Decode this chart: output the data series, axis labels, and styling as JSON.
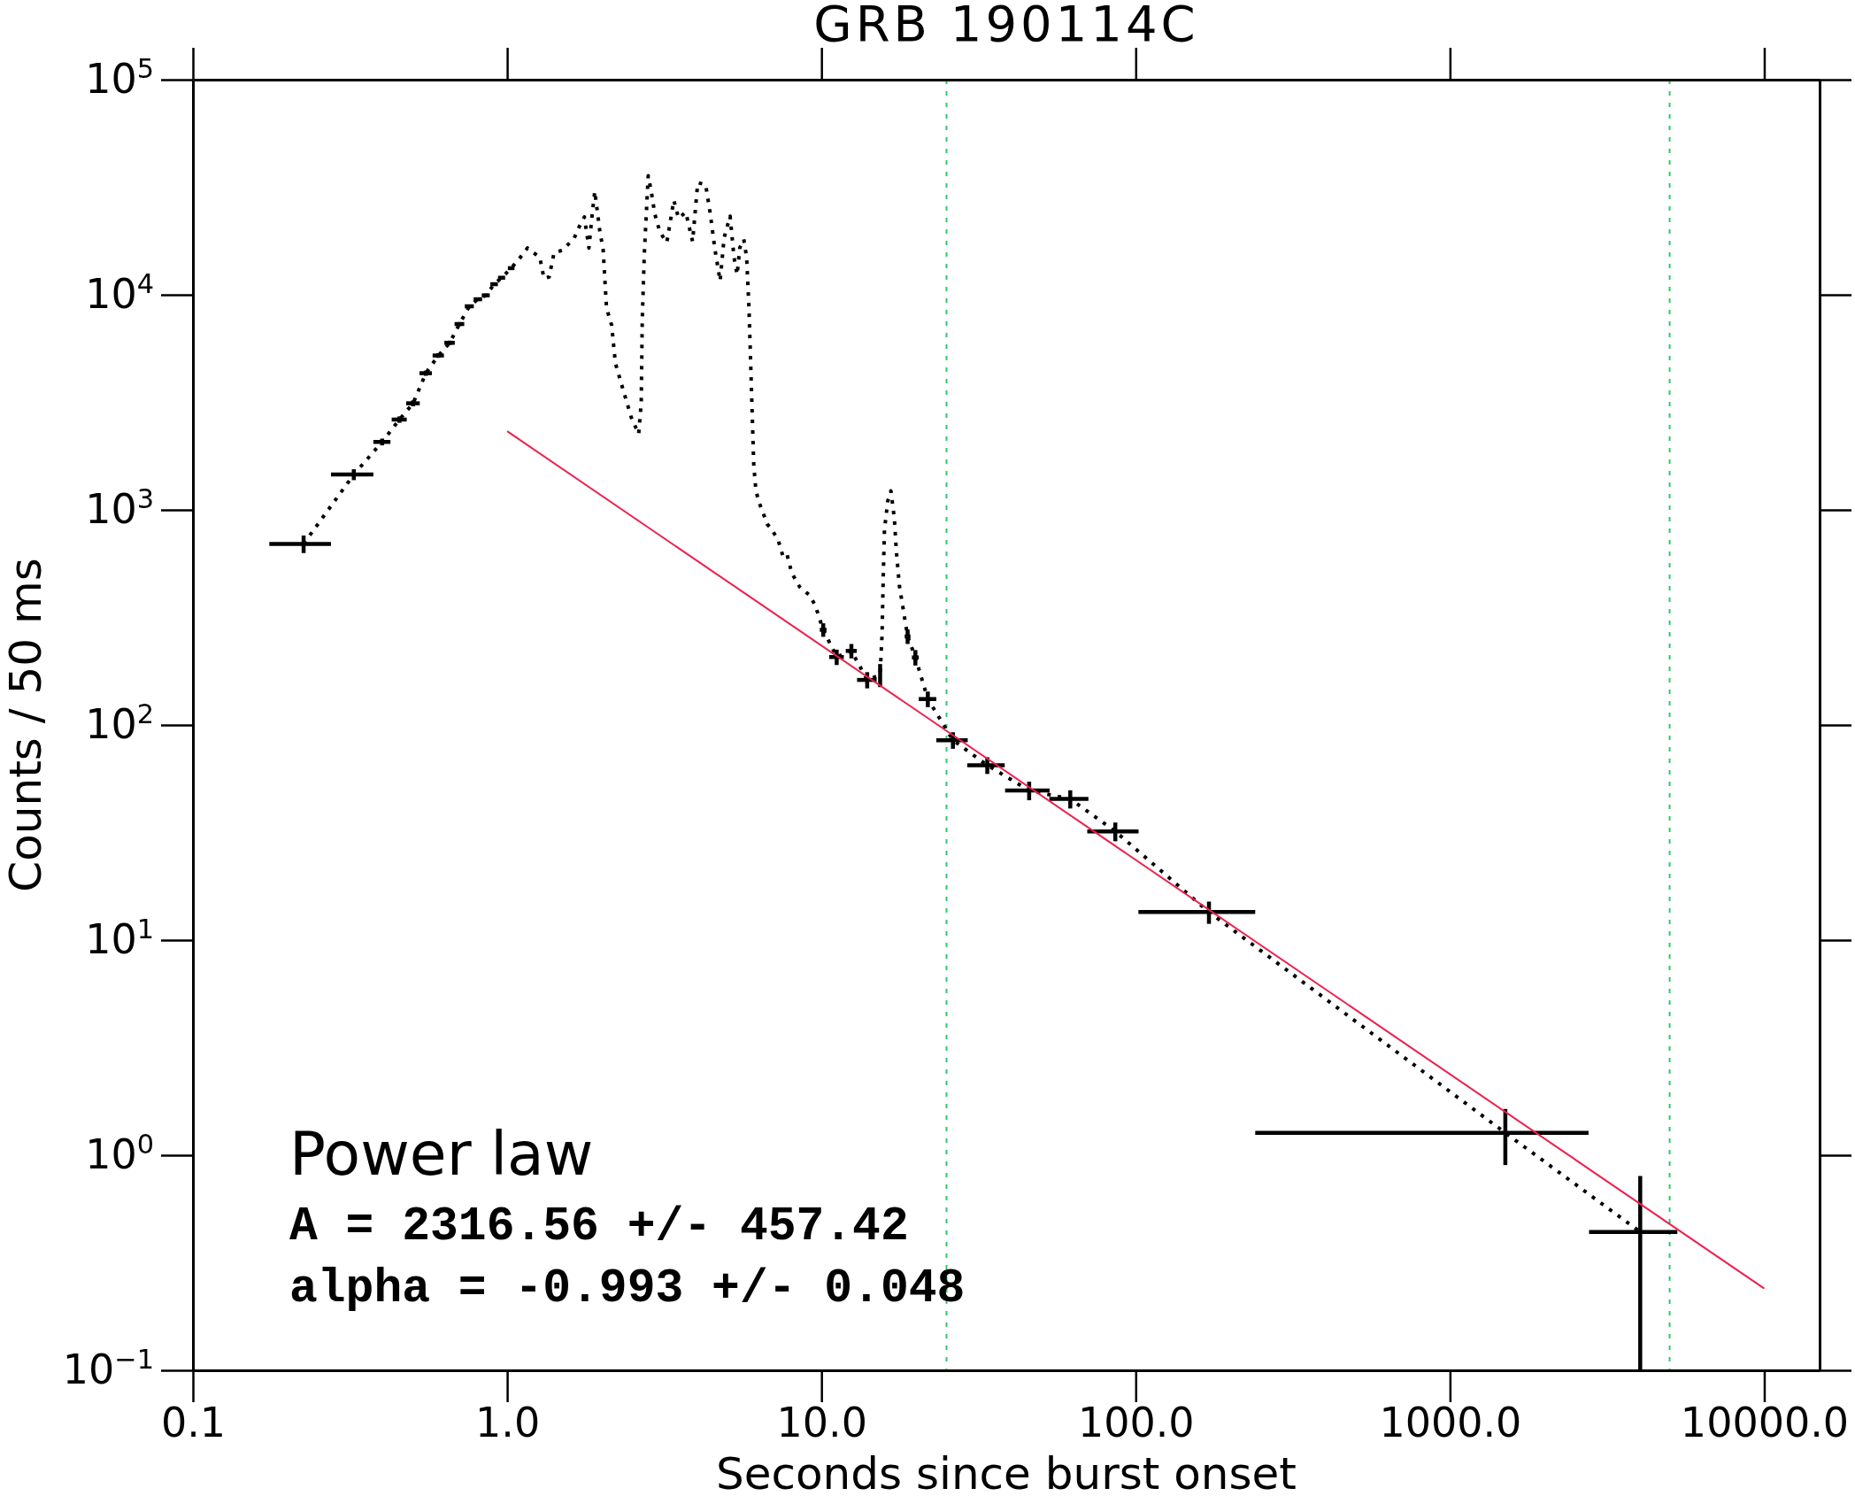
{
  "chart_data": {
    "type": "line",
    "title": "GRB 190114C",
    "xlabel": "Seconds since burst onset",
    "ylabel": "Counts / 50 ms",
    "log": "xy",
    "xlim": [
      0.1,
      15000
    ],
    "ylim": [
      0.1,
      100000
    ],
    "xticks": [
      0.1,
      {
        "value": 1,
        "label": "1.0"
      },
      {
        "value": 10,
        "label": "10.0"
      },
      {
        "value": 100,
        "label": "100.0"
      },
      {
        "value": 1000,
        "label": "1000.0"
      },
      {
        "value": 10000,
        "label": "10000.0"
      }
    ],
    "yticks": [
      {
        "value": 0.1,
        "label": "10$^{−1}$"
      },
      {
        "value": 1,
        "label": "10$^{0}$"
      },
      {
        "value": 10,
        "label": "10$^{1}$"
      },
      {
        "value": 100,
        "label": "10$^{2}$"
      },
      {
        "value": 1000,
        "label": "10$^{3}$"
      },
      {
        "value": 10000,
        "label": "10$^{4}$"
      },
      {
        "value": 100000,
        "label": "10$^{5}$"
      }
    ],
    "series": [
      {
        "color": "#000000",
        "line_style": "dotted",
        "x": [
          0.225,
          0.325,
          0.4,
          0.454,
          0.502,
          0.551,
          0.604,
          0.656,
          0.705,
          0.758,
          0.807,
          0.855,
          0.909,
          0.96,
          1.03,
          1.1,
          1.16,
          1.22,
          1.27,
          1.31,
          1.36,
          1.41,
          1.5,
          1.56,
          1.63,
          1.7,
          1.76,
          1.82,
          1.86,
          1.9,
          1.97,
          2.02,
          2.07,
          2.15,
          2.21,
          2.34,
          2.48,
          2.62,
          2.67,
          2.69,
          2.73,
          2.81,
          2.87,
          2.95,
          3.06,
          3.22,
          3.39,
          3.51,
          3.7,
          3.89,
          4.04,
          4.28,
          4.43,
          4.58,
          4.76,
          4.9,
          5.12,
          5.27,
          5.39,
          5.5,
          5.66,
          5.78,
          5.88,
          6.0,
          6.09,
          6.18,
          6.3,
          6.52,
          6.71,
          6.91,
          7.28,
          7.54,
          7.76,
          8.04,
          8.51,
          9.18,
          9.55,
          10.13,
          11.18,
          12.45,
          13.98,
          15.37,
          15.59,
          15.73,
          15.87,
          16.03,
          16.23,
          16.63,
          17.06,
          17.3,
          17.7,
          18.1,
          18.8,
          19.9,
          21.8,
          26.2,
          33.7,
          45.8,
          61.9,
          86.1,
          171,
          1500,
          4030
        ],
        "values": [
          695,
          1460,
          2070,
          2630,
          3130,
          4320,
          5220,
          5980,
          7310,
          8840,
          9530,
          9940,
          11200,
          12000,
          13300,
          14900,
          16500,
          15600,
          14900,
          11900,
          12100,
          15700,
          16100,
          17100,
          18200,
          20900,
          23000,
          16500,
          23000,
          30300,
          19900,
          16200,
          8700,
          7200,
          4800,
          3600,
          2700,
          2250,
          3150,
          7600,
          15300,
          35800,
          30500,
          23700,
          19600,
          17500,
          27500,
          22700,
          24200,
          17700,
          33200,
          32500,
          23700,
          16300,
          11600,
          18400,
          23200,
          14900,
          12400,
          16600,
          18100,
          14900,
          8650,
          3290,
          1610,
          1250,
          1100,
          970,
          860,
          820,
          725,
          610,
          625,
          510,
          440,
          400,
          360,
          277,
          207,
          221,
          162,
          171,
          264,
          497,
          822,
          912,
          1090,
          1225,
          912,
          650,
          444,
          364,
          258,
          206,
          132,
          85,
          65,
          49.6,
          45.3,
          32.0,
          13.5,
          1.27,
          0.44
        ],
        "xerrors": [
          0.05,
          0.05,
          0.025,
          0.025,
          0.025,
          0.025,
          0.025,
          0.025,
          0.025,
          0.025,
          0.025,
          0.025,
          0.025,
          0.025,
          0.025,
          null,
          null,
          null,
          null,
          null,
          null,
          null,
          null,
          null,
          null,
          null,
          null,
          null,
          null,
          null,
          null,
          null,
          null,
          null,
          null,
          null,
          null,
          null,
          null,
          null,
          null,
          null,
          null,
          null,
          null,
          null,
          null,
          null,
          null,
          null,
          null,
          null,
          null,
          null,
          null,
          null,
          null,
          null,
          null,
          null,
          null,
          null,
          null,
          null,
          null,
          null,
          null,
          null,
          null,
          null,
          null,
          null,
          null,
          null,
          null,
          null,
          null,
          0.25,
          0.6,
          0.5,
          1.0,
          null,
          null,
          null,
          null,
          null,
          null,
          null,
          null,
          null,
          null,
          null,
          0.4,
          0.5,
          1.4,
          3,
          4.6,
          7.4,
          8.8,
          16,
          69,
          1260,
          1260
        ],
        "errors": [
          65,
          85,
          75,
          90,
          100,
          120,
          130,
          140,
          155,
          170,
          175,
          180,
          190,
          200,
          null,
          null,
          null,
          null,
          null,
          null,
          null,
          null,
          null,
          null,
          null,
          null,
          null,
          null,
          null,
          null,
          null,
          null,
          null,
          null,
          null,
          null,
          null,
          null,
          null,
          null,
          null,
          null,
          null,
          null,
          null,
          null,
          null,
          null,
          null,
          null,
          null,
          null,
          null,
          null,
          null,
          null,
          null,
          null,
          null,
          null,
          null,
          null,
          null,
          null,
          null,
          null,
          null,
          null,
          null,
          null,
          null,
          null,
          null,
          null,
          null,
          null,
          null,
          20,
          17,
          17,
          14,
          21,
          null,
          null,
          null,
          null,
          null,
          null,
          null,
          null,
          null,
          null,
          20,
          17,
          11,
          7.5,
          5.8,
          4.9,
          4.4,
          3.2,
          1.6,
          0.37,
          [
            0.1,
            0.8
          ]
        ]
      },
      {
        "color": "#ee1f4b",
        "line_style": "solid",
        "x": [
          1,
          10000
        ],
        "values": [
          2320,
          0.24
        ]
      }
    ],
    "ref_lines": [
      {
        "axis": "x",
        "value": 25,
        "color": "#2ec86e",
        "line_style": "dotted"
      },
      {
        "axis": "x",
        "value": 5000,
        "color": "#2ec86e",
        "line_style": "dotted"
      }
    ],
    "annotations": [
      "Power law",
      "A = 2316.56 +/- 457.42",
      "alpha = -0.993 +/- 0.048"
    ]
  }
}
